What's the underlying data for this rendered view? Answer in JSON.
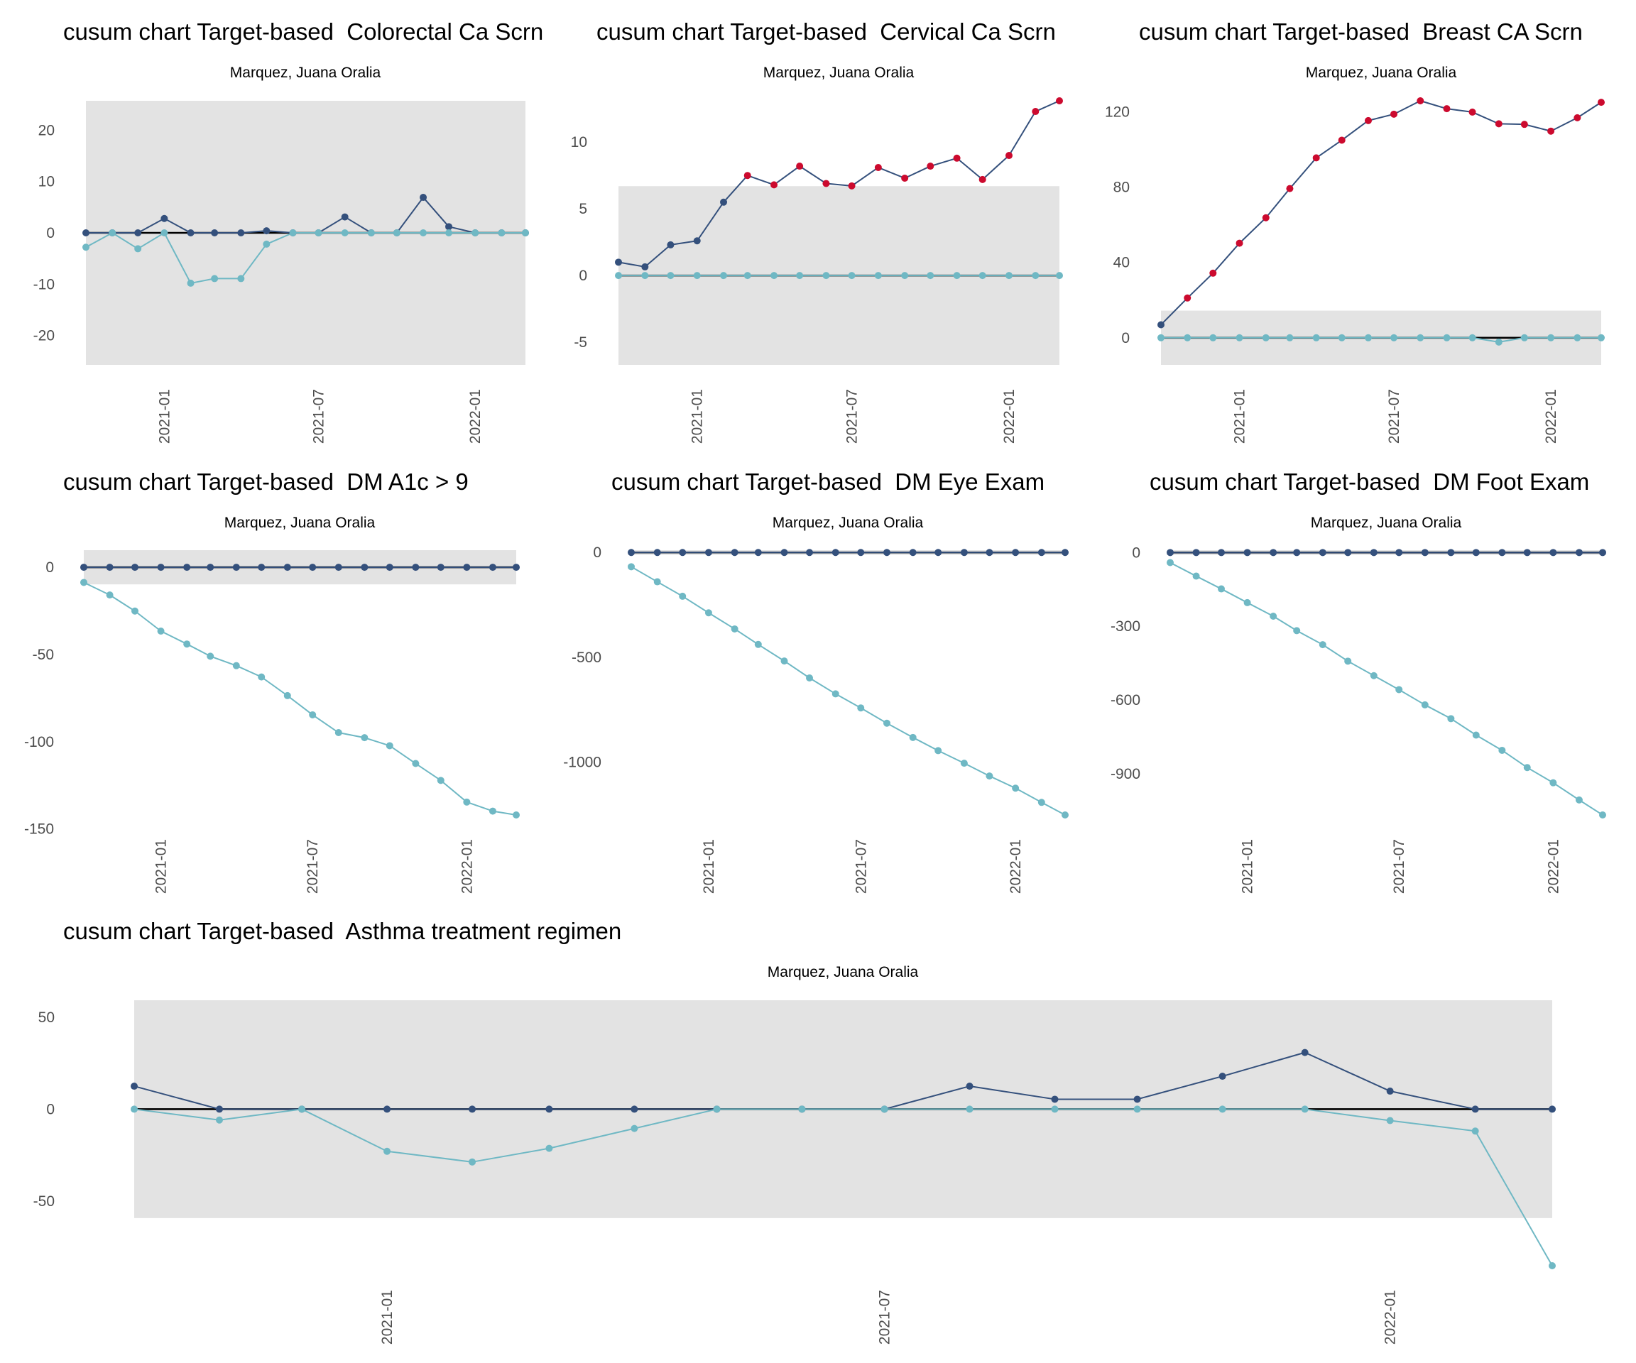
{
  "colors": {
    "upper_series": "#34507c",
    "lower_series": "#6fb8c4",
    "out_of_control": "#cc0a2e",
    "control_band": "#e3e3e3",
    "zero_line": "#000000",
    "tick_text": "#4d4d4d"
  },
  "chart_data": [
    {
      "type": "line",
      "title": "cusum chart Target-based  Colorectal Ca Scrn",
      "subtitle": "Marquez, Juana Oralia",
      "x": [
        "2020-10",
        "2020-11",
        "2020-12",
        "2021-01",
        "2021-02",
        "2021-03",
        "2021-04",
        "2021-05",
        "2021-06",
        "2021-07",
        "2021-08",
        "2021-09",
        "2021-10",
        "2021-11",
        "2021-12",
        "2022-01",
        "2022-02",
        "2022-03"
      ],
      "x_ticks": [
        "2021-01",
        "2021-07",
        "2022-01"
      ],
      "y_ticks": [
        20,
        10,
        0,
        -10,
        -20
      ],
      "ylim": [
        -25.7,
        25.7
      ],
      "control_limit": 25.7,
      "grid": false,
      "series": [
        {
          "role": "upper",
          "values": [
            0,
            0,
            0,
            2.8,
            0,
            0,
            0,
            0.4,
            0,
            0,
            3.1,
            0,
            0,
            6.9,
            1.2,
            0,
            0,
            0
          ]
        },
        {
          "role": "lower",
          "values": [
            -2.8,
            0,
            -3.1,
            0,
            -9.8,
            -8.9,
            -8.9,
            -2.2,
            0,
            0,
            0,
            0,
            0,
            0,
            0,
            0,
            0,
            0
          ]
        }
      ]
    },
    {
      "type": "line",
      "title": "cusum chart Target-based  Cervical Ca Scrn",
      "subtitle": "Marquez, Juana Oralia",
      "x": [
        "2020-10",
        "2020-11",
        "2020-12",
        "2021-01",
        "2021-02",
        "2021-03",
        "2021-04",
        "2021-05",
        "2021-06",
        "2021-07",
        "2021-08",
        "2021-09",
        "2021-10",
        "2021-11",
        "2021-12",
        "2022-01",
        "2022-02",
        "2022-03"
      ],
      "x_ticks": [
        "2021-01",
        "2021-07",
        "2022-01"
      ],
      "y_ticks": [
        10,
        5,
        0,
        -5
      ],
      "ylim": [
        -6.7,
        13.1
      ],
      "control_limit": 6.7,
      "grid": false,
      "series": [
        {
          "role": "upper",
          "values": [
            1.0,
            0.65,
            2.3,
            2.6,
            5.5,
            7.5,
            6.8,
            8.2,
            6.9,
            6.72,
            8.1,
            7.3,
            8.2,
            8.8,
            7.2,
            9.0,
            12.3,
            13.1
          ]
        },
        {
          "role": "lower",
          "values": [
            0,
            0,
            0,
            0,
            0,
            0,
            0,
            0,
            0,
            0,
            0,
            0,
            0,
            0,
            0,
            0,
            0,
            0
          ]
        }
      ]
    },
    {
      "type": "line",
      "title": "cusum chart Target-based  Breast CA Scrn",
      "subtitle": "Marquez, Juana Oralia",
      "x": [
        "2020-10",
        "2020-11",
        "2020-12",
        "2021-01",
        "2021-02",
        "2021-03",
        "2021-04",
        "2021-05",
        "2021-06",
        "2021-07",
        "2021-08",
        "2021-09",
        "2021-10",
        "2021-11",
        "2021-12",
        "2022-01",
        "2022-02",
        "2022-03"
      ],
      "x_ticks": [
        "2021-01",
        "2021-07",
        "2022-01"
      ],
      "y_ticks": [
        120,
        80,
        40,
        0
      ],
      "ylim": [
        -14.4,
        125.8
      ],
      "control_limit": 14.4,
      "grid": false,
      "series": [
        {
          "role": "upper",
          "values": [
            6.9,
            21.1,
            34.3,
            50.2,
            63.7,
            79.2,
            95.5,
            104.9,
            115.3,
            118.7,
            125.8,
            121.6,
            119.8,
            113.6,
            113.3,
            109.7,
            116.8,
            125.0
          ]
        },
        {
          "role": "lower",
          "values": [
            0,
            0,
            0,
            0,
            0,
            0,
            0,
            0,
            0,
            0,
            0,
            0,
            0,
            -2.3,
            0,
            0,
            0,
            0
          ]
        }
      ]
    },
    {
      "type": "line",
      "title": "cusum chart Target-based  DM A1c > 9",
      "subtitle": "Marquez, Juana Oralia",
      "x": [
        "2020-10",
        "2020-11",
        "2020-12",
        "2021-01",
        "2021-02",
        "2021-03",
        "2021-04",
        "2021-05",
        "2021-06",
        "2021-07",
        "2021-08",
        "2021-09",
        "2021-10",
        "2021-11",
        "2021-12",
        "2022-01",
        "2022-02",
        "2022-03"
      ],
      "x_ticks": [
        "2021-01",
        "2021-07",
        "2022-01"
      ],
      "y_ticks": [
        0,
        -50,
        -100,
        -150
      ],
      "ylim": [
        -142.0,
        9.8
      ],
      "control_limit": 9.8,
      "grid": false,
      "series": [
        {
          "role": "upper",
          "values": [
            0,
            0,
            0,
            0,
            0,
            0,
            0,
            0,
            0,
            0,
            0,
            0,
            0,
            0,
            0,
            0,
            0,
            0
          ]
        },
        {
          "role": "lower",
          "values": [
            -8.7,
            -15.9,
            -25.1,
            -36.6,
            -44.0,
            -51.0,
            -56.4,
            -62.9,
            -73.6,
            -84.6,
            -94.8,
            -97.7,
            -102.3,
            -112.5,
            -122.2,
            -134.6,
            -139.8,
            -142.0
          ]
        }
      ]
    },
    {
      "type": "line",
      "title": "cusum chart Target-based  DM Eye Exam",
      "subtitle": "Marquez, Juana Oralia",
      "x": [
        "2020-10",
        "2020-11",
        "2020-12",
        "2021-01",
        "2021-02",
        "2021-03",
        "2021-04",
        "2021-05",
        "2021-06",
        "2021-07",
        "2021-08",
        "2021-09",
        "2021-10",
        "2021-11",
        "2021-12",
        "2022-01",
        "2022-02",
        "2022-03"
      ],
      "x_ticks": [
        "2021-01",
        "2021-07",
        "2022-01"
      ],
      "y_ticks": [
        0,
        -500,
        -1000
      ],
      "ylim": [
        -1253,
        11
      ],
      "control_limit": 11,
      "grid": false,
      "series": [
        {
          "role": "upper",
          "values": [
            0,
            0,
            0,
            0,
            0,
            0,
            0,
            0,
            0,
            0,
            0,
            0,
            0,
            0,
            0,
            0,
            0,
            0
          ]
        },
        {
          "role": "lower",
          "values": [
            -68,
            -140,
            -209,
            -288,
            -365,
            -439,
            -518,
            -599,
            -675,
            -742,
            -815,
            -883,
            -946,
            -1006,
            -1067,
            -1125,
            -1193,
            -1253
          ]
        }
      ]
    },
    {
      "type": "line",
      "title": "cusum chart Target-based  DM Foot Exam",
      "subtitle": "Marquez, Juana Oralia",
      "x": [
        "2020-10",
        "2020-11",
        "2020-12",
        "2021-01",
        "2021-02",
        "2021-03",
        "2021-04",
        "2021-05",
        "2021-06",
        "2021-07",
        "2021-08",
        "2021-09",
        "2021-10",
        "2021-11",
        "2021-12",
        "2022-01",
        "2022-02",
        "2022-03"
      ],
      "x_ticks": [
        "2021-01",
        "2021-07",
        "2022-01"
      ],
      "y_ticks": [
        0,
        -300,
        -600,
        -900
      ],
      "ylim": [
        -1068,
        9.6
      ],
      "control_limit": 9.6,
      "grid": false,
      "series": [
        {
          "role": "upper",
          "values": [
            0,
            0,
            0,
            0,
            0,
            0,
            0,
            0,
            0,
            0,
            0,
            0,
            0,
            0,
            0,
            0,
            0,
            0
          ]
        },
        {
          "role": "lower",
          "values": [
            -41,
            -96,
            -148,
            -204,
            -259,
            -318,
            -375,
            -442,
            -501,
            -558,
            -620,
            -676,
            -743,
            -805,
            -875,
            -937,
            -1007,
            -1068
          ]
        }
      ]
    },
    {
      "type": "line",
      "title": "cusum chart Target-based  Asthma treatment regimen",
      "subtitle": "Marquez, Juana Oralia",
      "x": [
        "2020-10",
        "2020-11",
        "2020-12",
        "2021-01",
        "2021-02",
        "2021-03",
        "2021-04",
        "2021-05",
        "2021-06",
        "2021-07",
        "2021-08",
        "2021-09",
        "2021-10",
        "2021-11",
        "2021-12",
        "2022-01",
        "2022-02",
        "2022-03"
      ],
      "x_ticks": [
        "2021-01",
        "2021-07",
        "2022-01"
      ],
      "y_ticks": [
        50,
        0,
        -50
      ],
      "ylim": [
        -85.1,
        59.2
      ],
      "control_limit": 59.2,
      "grid": false,
      "series": [
        {
          "role": "upper",
          "values": [
            12.5,
            0,
            0,
            0,
            0,
            0,
            0,
            0,
            0,
            0,
            12.5,
            5.4,
            5.4,
            17.9,
            30.8,
            9.8,
            0,
            0
          ]
        },
        {
          "role": "lower",
          "values": [
            0,
            -5.9,
            0,
            -22.9,
            -28.7,
            -21.3,
            -10.5,
            0,
            0,
            0,
            0,
            0,
            0,
            0,
            0,
            -6.2,
            -11.9,
            -85.1
          ]
        }
      ]
    }
  ]
}
